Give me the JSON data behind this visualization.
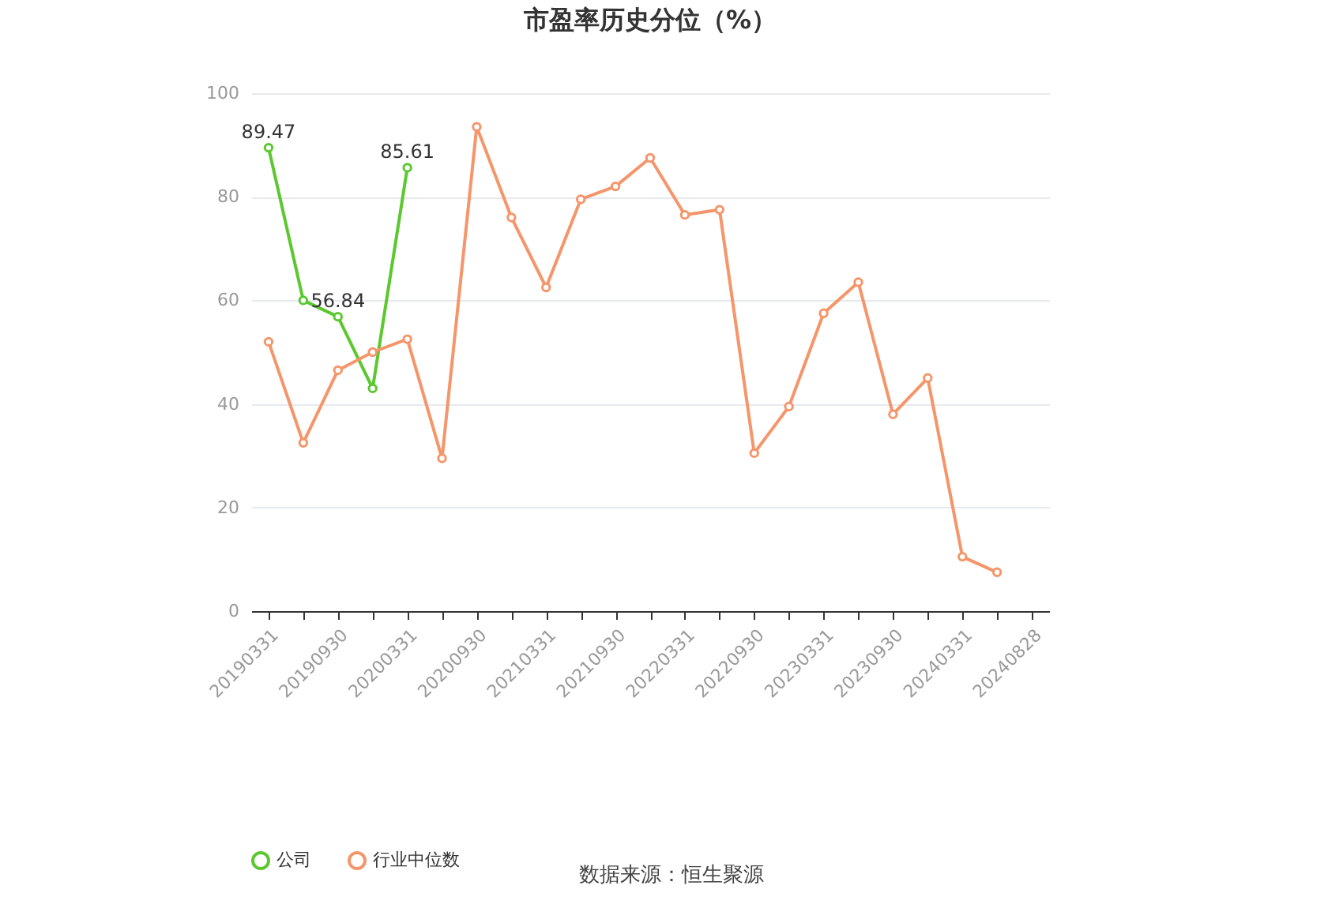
{
  "chart_data": {
    "type": "line",
    "title": "市盈率历史分位（%）",
    "categories": [
      "20190331",
      null,
      "20190930",
      null,
      "20200331",
      null,
      "20200930",
      null,
      "20210331",
      null,
      "20210930",
      null,
      "20220331",
      null,
      "20220930",
      null,
      "20230331",
      null,
      "20230930",
      null,
      "20240331",
      null,
      "20240828"
    ],
    "series": [
      {
        "name": "公司",
        "color": "#5bc82f",
        "values": [
          89.47,
          60,
          56.84,
          43,
          85.61,
          null,
          null,
          null,
          null,
          null,
          null,
          null,
          null,
          null,
          null,
          null,
          null,
          null,
          null,
          null,
          null,
          null,
          null
        ],
        "value_labels": [
          "89.47",
          null,
          "56.84",
          null,
          "85.61",
          null,
          null,
          null,
          null,
          null,
          null,
          null,
          null,
          null,
          null,
          null,
          null,
          null,
          null,
          null,
          null,
          null,
          null
        ]
      },
      {
        "name": "行业中位数",
        "color": "#f5956a",
        "values": [
          52,
          32.5,
          46.5,
          50,
          52.5,
          29.5,
          93.5,
          76,
          62.5,
          79.5,
          82,
          87.5,
          76.5,
          77.5,
          30.5,
          39.5,
          57.5,
          63.5,
          38,
          45,
          10.5,
          7.5,
          null
        ]
      }
    ],
    "ylim": [
      0,
      100
    ],
    "yticks": [
      0,
      20,
      40,
      60,
      80,
      100
    ],
    "grid": "y",
    "legend": "bottom",
    "marker": "circle",
    "line_style": "solid",
    "annotations": [
      "数据来源：恒生聚源"
    ]
  }
}
